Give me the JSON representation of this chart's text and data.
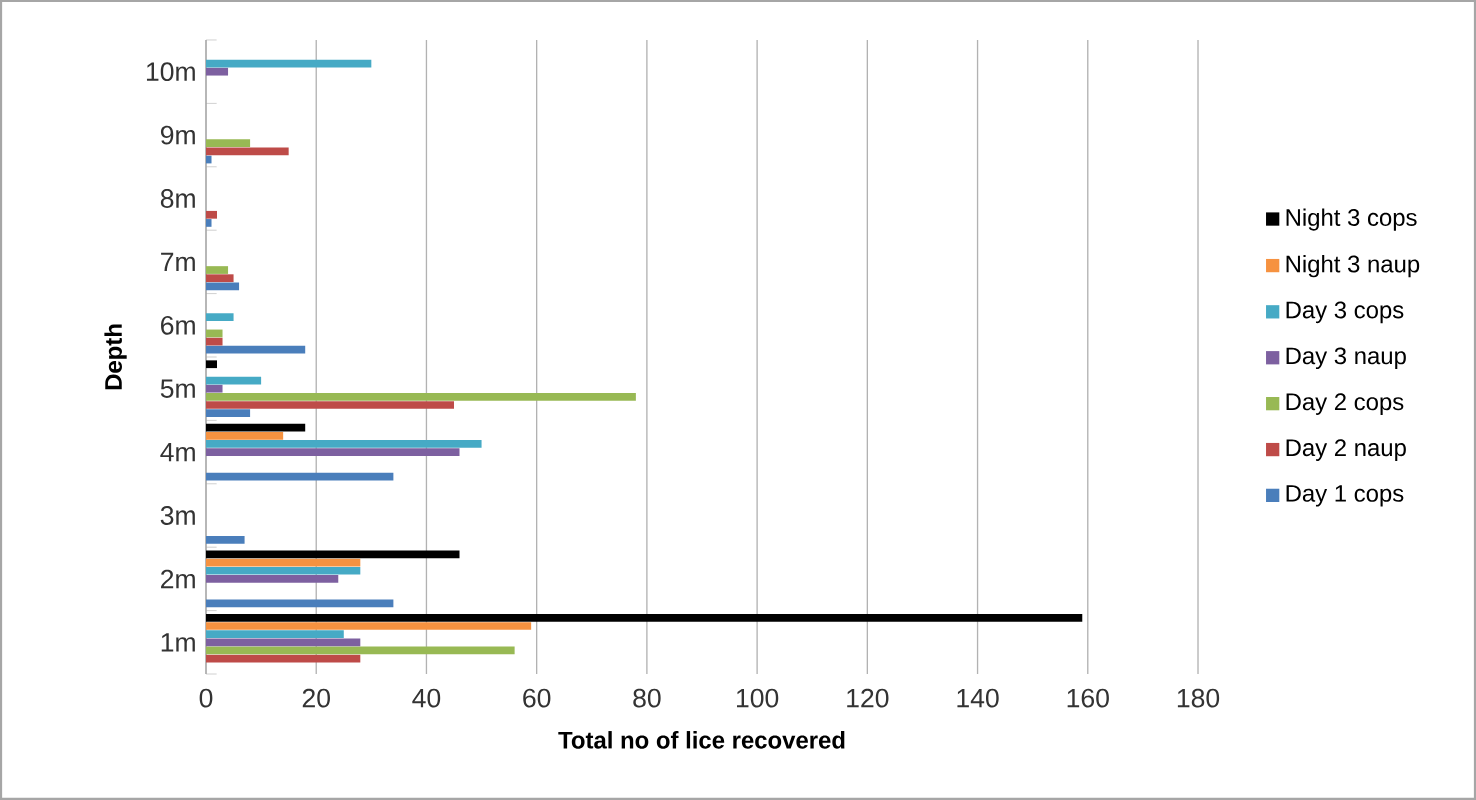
{
  "chart_data": {
    "type": "bar",
    "orientation": "horizontal",
    "xlabel": "Total no of lice recovered",
    "ylabel": "Depth",
    "categories": [
      "10m",
      "9m",
      "8m",
      "7m",
      "6m",
      "5m",
      "4m",
      "3m",
      "2m",
      "1m"
    ],
    "series": [
      {
        "name": "Day 1 cops",
        "color": "#4a7ebb",
        "values": [
          null,
          1,
          1,
          6,
          18,
          8,
          34,
          7,
          34,
          null
        ]
      },
      {
        "name": "Day 2 naup",
        "color": "#be4b48",
        "values": [
          null,
          15,
          2,
          5,
          3,
          45,
          null,
          null,
          null,
          28
        ]
      },
      {
        "name": "Day 2 cops",
        "color": "#98b954",
        "values": [
          null,
          8,
          null,
          4,
          3,
          78,
          null,
          null,
          null,
          56
        ]
      },
      {
        "name": "Day 3 naup",
        "color": "#7d60a0",
        "values": [
          4,
          null,
          null,
          null,
          null,
          3,
          46,
          null,
          24,
          28
        ]
      },
      {
        "name": "Day 3 cops",
        "color": "#46aac5",
        "values": [
          30,
          null,
          null,
          null,
          5,
          10,
          50,
          null,
          28,
          25
        ]
      },
      {
        "name": "Night 3 naup",
        "color": "#f69240",
        "values": [
          null,
          null,
          null,
          null,
          null,
          null,
          14,
          null,
          28,
          59
        ]
      },
      {
        "name": "Night 3 cops",
        "color": "#000000",
        "values": [
          null,
          null,
          null,
          null,
          null,
          2,
          18,
          null,
          46,
          159
        ]
      }
    ],
    "xlim": [
      0,
      180
    ],
    "xticks": [
      0,
      20,
      40,
      60,
      80,
      100,
      120,
      140,
      160,
      180
    ],
    "grid": "x",
    "legend": "right"
  }
}
